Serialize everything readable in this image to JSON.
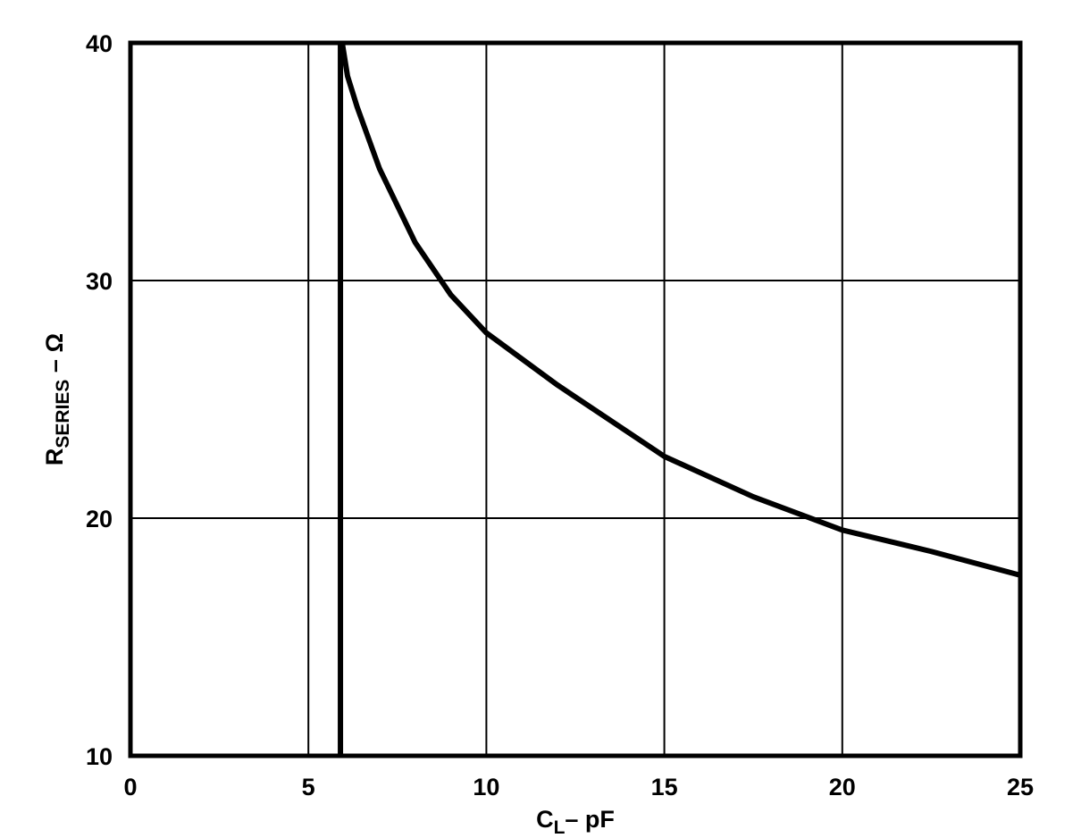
{
  "chart_data": {
    "type": "line",
    "x_label": {
      "main": "C",
      "sub": "L",
      "rest": "– pF"
    },
    "y_label": {
      "main": "R",
      "sub": "SERIES",
      "rest": " – Ω"
    },
    "xlim": [
      0,
      25
    ],
    "ylim": [
      10,
      40
    ],
    "xticks": [
      0,
      5,
      10,
      15,
      20,
      25
    ],
    "yticks": [
      10,
      20,
      30,
      40
    ],
    "grid": true,
    "series": [
      {
        "color": "#000000",
        "x": [
          5.95,
          6.1,
          6.37,
          7,
          8,
          9,
          10,
          12,
          15,
          17.5,
          20,
          22.5,
          25
        ],
        "values": [
          40,
          38.6,
          37.3,
          34.7,
          31.6,
          29.4,
          27.8,
          25.6,
          22.6,
          20.9,
          19.5,
          18.6,
          17.6
        ]
      },
      {
        "color": "#000000",
        "x": [
          5.9,
          5.9
        ],
        "values": [
          10,
          40
        ]
      }
    ]
  }
}
